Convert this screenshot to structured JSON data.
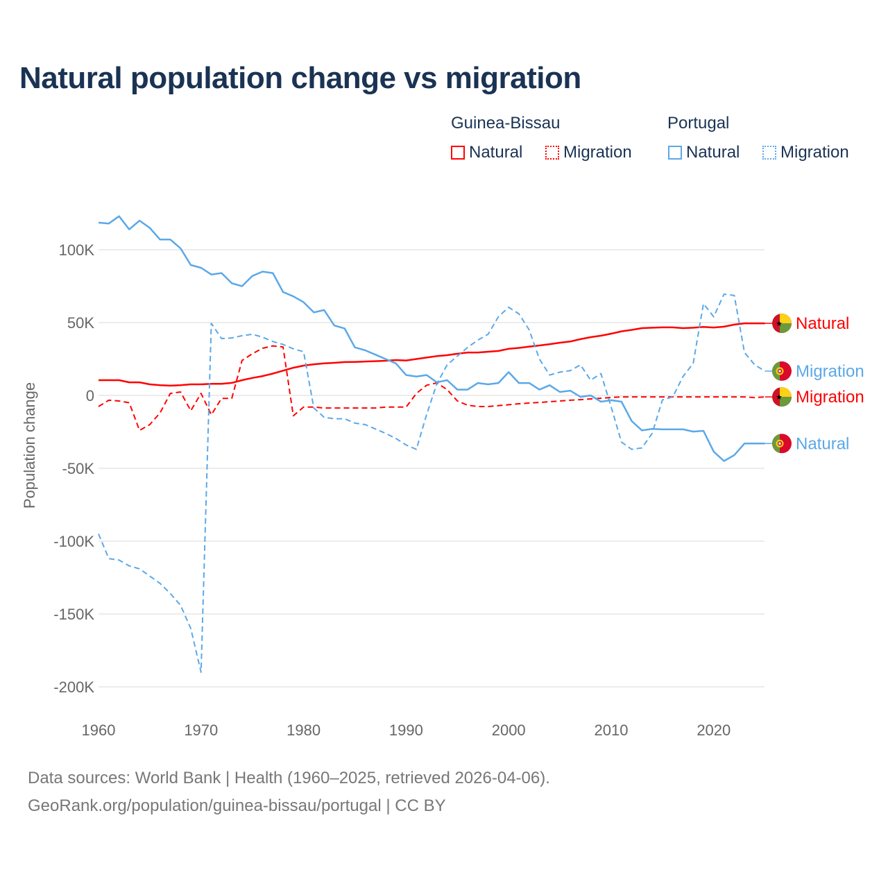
{
  "title": "Natural population change vs migration",
  "legend": {
    "groups": [
      {
        "name": "Guinea-Bissau",
        "items": [
          {
            "label": "Natural",
            "style": "solid"
          },
          {
            "label": "Migration",
            "style": "dotted"
          }
        ],
        "color": "#ff0000"
      },
      {
        "name": "Portugal",
        "items": [
          {
            "label": "Natural",
            "style": "solid"
          },
          {
            "label": "Migration",
            "style": "dotted"
          }
        ],
        "color": "#5ba8e8"
      }
    ]
  },
  "footer": {
    "line1": "Data sources: World Bank | Health (1960–2025, retrieved 2026-04-06).",
    "line2": "GeoRank.org/population/guinea-bissau/portugal | CC BY"
  },
  "chart_data": {
    "type": "line",
    "title": "Natural population change vs migration",
    "xlabel": "",
    "ylabel": "Population change",
    "xlim": [
      1960,
      2025
    ],
    "ylim": [
      -200000,
      120000
    ],
    "x_ticks": [
      1960,
      1970,
      1980,
      1990,
      2000,
      2010,
      2020
    ],
    "y_ticks": [
      {
        "v": 100000,
        "label": "100K"
      },
      {
        "v": 50000,
        "label": "50K"
      },
      {
        "v": 0,
        "label": "0"
      },
      {
        "v": -50000,
        "label": "-50K"
      },
      {
        "v": -100000,
        "label": "-100K"
      },
      {
        "v": -150000,
        "label": "-150K"
      },
      {
        "v": -200000,
        "label": "-200K"
      }
    ],
    "grid": true,
    "legend_position": "top-right",
    "x_start": 1960,
    "series": [
      {
        "name": "Guinea-Bissau Natural",
        "end_label": "Natural",
        "color": "#ff0000",
        "dash": false,
        "flag": "guinea-bissau",
        "values": [
          10.5,
          10.5,
          10.5,
          9,
          9,
          7.6,
          7,
          6.7,
          7,
          7.6,
          7.6,
          8,
          8,
          8.6,
          10.5,
          12,
          13.3,
          15,
          17,
          19,
          20.5,
          21.4,
          22,
          22.4,
          22.9,
          23,
          23.3,
          23.5,
          23.8,
          24.3,
          24,
          25,
          26,
          27,
          27.6,
          28.6,
          29.5,
          29.5,
          30,
          30.5,
          32,
          32.6,
          33.5,
          34.3,
          35.2,
          36.2,
          37,
          38.6,
          40,
          41,
          42.4,
          44,
          45,
          46.2,
          46.5,
          46.7,
          46.7,
          46.2,
          46.5,
          47,
          46.6,
          47.2,
          48.6,
          49.5,
          49.5,
          49.5
        ]
      },
      {
        "name": "Guinea-Bissau Migration",
        "end_label": "Migration",
        "color": "#ff0000",
        "dash": true,
        "flag": "guinea-bissau",
        "values": [
          -7.6,
          -3.3,
          -3.8,
          -5,
          -24,
          -20,
          -12,
          1.4,
          2.4,
          -10.5,
          1.4,
          -13.3,
          -2,
          -2,
          24,
          28.6,
          32.4,
          34,
          33.3,
          -14,
          -8,
          -8,
          -8.6,
          -8.6,
          -8.6,
          -8.6,
          -8.6,
          -8.6,
          -8,
          -8,
          -8,
          1.4,
          7,
          8.6,
          4,
          -3.8,
          -6.7,
          -7.6,
          -7.6,
          -7,
          -6.4,
          -5.7,
          -5.2,
          -4.8,
          -4.3,
          -3.8,
          -3.3,
          -2.9,
          -2.4,
          -1.9,
          -1.4,
          -1,
          -1,
          -1,
          -1,
          -1,
          -1,
          -1,
          -1,
          -1,
          -1,
          -1,
          -1,
          -1,
          -1.5,
          -1
        ]
      },
      {
        "name": "Portugal Natural",
        "end_label": "Natural",
        "color": "#5ba8e8",
        "dash": false,
        "flag": "portugal",
        "values": [
          118.6,
          118,
          123,
          114,
          120,
          115,
          107,
          107,
          101,
          89.5,
          87.6,
          83,
          84,
          77,
          75,
          82,
          85,
          84,
          71,
          68,
          64,
          57,
          58.6,
          48,
          46,
          33,
          31,
          28,
          25,
          22,
          14,
          13,
          14,
          9,
          10.5,
          4,
          4,
          8.5,
          7.6,
          8.5,
          16,
          8.5,
          8.5,
          4,
          7,
          2.4,
          3.3,
          -1,
          0,
          -4.3,
          -3.3,
          -4.3,
          -17.6,
          -24,
          -23,
          -23.3,
          -23.3,
          -23.3,
          -24.8,
          -24.3,
          -38.6,
          -45,
          -41,
          -33,
          -33,
          -33
        ]
      },
      {
        "name": "Portugal Migration",
        "end_label": "Migration",
        "color": "#5ba8e8",
        "dash": true,
        "flag": "portugal",
        "values": [
          -95,
          -112,
          -113,
          -117,
          -119,
          -124,
          -129,
          -136,
          -144,
          -160,
          -190,
          49.5,
          39,
          39.5,
          41,
          42,
          40,
          37,
          35,
          32,
          30,
          -8.6,
          -15,
          -16,
          -16,
          -19,
          -20,
          -23,
          -26,
          -29.5,
          -34,
          -37,
          -13,
          8,
          21,
          27,
          33,
          38,
          42,
          54,
          60.5,
          56,
          45,
          25,
          14,
          16,
          17,
          21,
          10.5,
          15,
          -8,
          -32,
          -37,
          -36,
          -26,
          -3,
          -1,
          13,
          22,
          63,
          54,
          69.5,
          68.6,
          29.5,
          21,
          16.7
        ]
      }
    ],
    "value_unit": "thousands"
  }
}
